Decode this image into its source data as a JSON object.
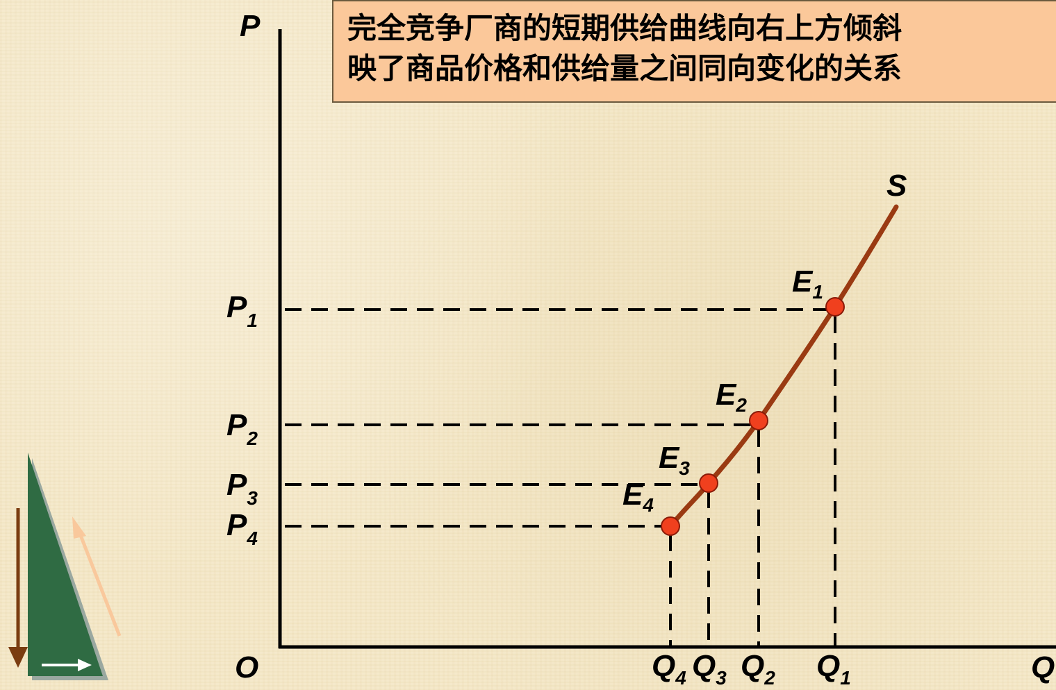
{
  "annotation": {
    "line1": "完全竞争厂商的短期供给曲线向右上方倾斜",
    "line2": "映了商品价格和供给量之间同向变化的关系"
  },
  "axes": {
    "y_label": "P",
    "x_label": "Q",
    "origin_label": "O"
  },
  "curve": {
    "label": "S",
    "color": "#9a3a12"
  },
  "points": [
    {
      "name": "E",
      "sub": "1",
      "p_name": "P",
      "p_sub": "1",
      "q_name": "Q",
      "q_sub": "1"
    },
    {
      "name": "E",
      "sub": "2",
      "p_name": "P",
      "p_sub": "2",
      "q_name": "Q",
      "q_sub": "2"
    },
    {
      "name": "E",
      "sub": "3",
      "p_name": "P",
      "p_sub": "3",
      "q_name": "Q",
      "q_sub": "3"
    },
    {
      "name": "E",
      "sub": "4",
      "p_name": "P",
      "p_sub": "4",
      "q_name": "Q",
      "q_sub": "4"
    }
  ],
  "colors": {
    "point_fill": "#f0401e",
    "annotation_bg": "#fbc89a",
    "nav_green": "#2f6b43",
    "nav_arrow_brown": "#7a3c10",
    "nav_arrow_peach": "#f9c89c"
  }
}
